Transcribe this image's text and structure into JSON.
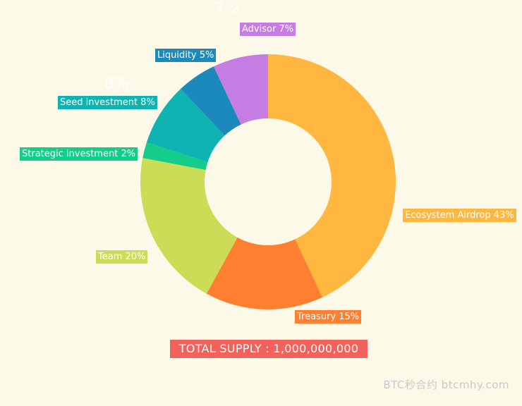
{
  "chart_data": {
    "type": "pie",
    "slices": [
      {
        "label": "Ecosystem Airdrop 43%",
        "value": 43,
        "color": "#ffb73f"
      },
      {
        "label": "Treasury 15%",
        "value": 15,
        "color": "#ff7f30"
      },
      {
        "label": "Team 20%",
        "value": 20,
        "color": "#cbdc57"
      },
      {
        "label": "Strategic investment 2%",
        "value": 2,
        "color": "#16cc8a"
      },
      {
        "label": "Seed investment 8%",
        "value": 8,
        "color": "#0fb3b2"
      },
      {
        "label": "Liquidity 5%",
        "value": 5,
        "color": "#1b89bb"
      },
      {
        "label": "Advisor 7%",
        "value": 7,
        "color": "#c57de3"
      }
    ],
    "ghost_labels": [
      "7%",
      "8%"
    ],
    "total": "TOTAL SUPPLY : 1,000,000,000",
    "total_color": "#f2615a"
  },
  "watermark": "BTC秒合约 btcmhy.com"
}
